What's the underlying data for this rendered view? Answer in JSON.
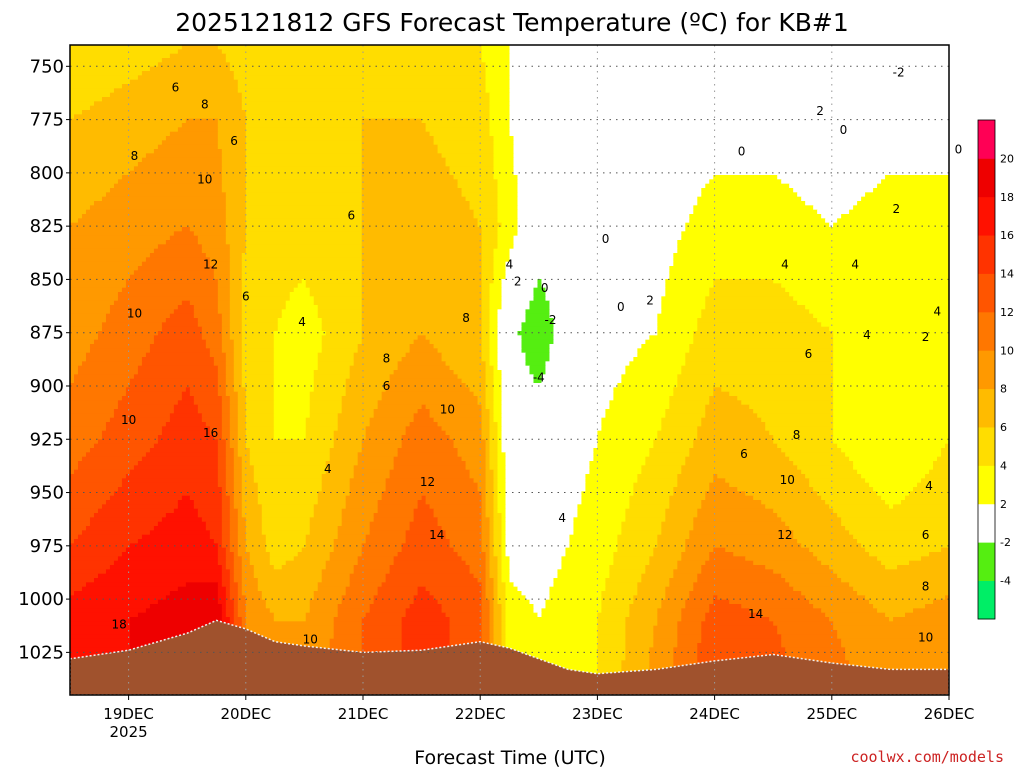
{
  "chart_data": {
    "type": "heatmap",
    "title": "2025121812 GFS Forecast Temperature (ºC) for KB#1",
    "xlabel": "Forecast Time (UTC)",
    "ylabel": "",
    "y_reversed": true,
    "xlim": [
      0,
      7.5
    ],
    "ylim": [
      740,
      1045
    ],
    "x_ticks": [
      {
        "x": 0.5,
        "label": "19DEC",
        "sub": "2025"
      },
      {
        "x": 1.5,
        "label": "20DEC",
        "sub": ""
      },
      {
        "x": 2.5,
        "label": "21DEC",
        "sub": ""
      },
      {
        "x": 3.5,
        "label": "22DEC",
        "sub": ""
      },
      {
        "x": 4.5,
        "label": "23DEC",
        "sub": ""
      },
      {
        "x": 5.5,
        "label": "24DEC",
        "sub": ""
      },
      {
        "x": 6.5,
        "label": "25DEC",
        "sub": ""
      },
      {
        "x": 7.5,
        "label": "26DEC",
        "sub": ""
      }
    ],
    "y_ticks": [
      750,
      775,
      800,
      825,
      850,
      875,
      900,
      925,
      950,
      975,
      1000,
      1025
    ],
    "x_knots": [
      0,
      0.5,
      1,
      1.25,
      1.5,
      1.75,
      2,
      2.5,
      3,
      3.5,
      3.75,
      4,
      4.25,
      4.5,
      5,
      5.5,
      6,
      6.5,
      7,
      7.5
    ],
    "y_knots": [
      740,
      775,
      825,
      875,
      925,
      975,
      1010,
      1045
    ],
    "temperature_grid": [
      [
        4,
        5,
        6,
        6,
        5,
        4,
        4,
        5,
        5,
        4,
        2,
        0,
        -2,
        -1,
        0,
        1,
        0,
        -2,
        -1,
        -1
      ],
      [
        6,
        7,
        8,
        8,
        6,
        5,
        5,
        6,
        6,
        5,
        2,
        0,
        0,
        0,
        0,
        1,
        1,
        0,
        1,
        1
      ],
      [
        8,
        9,
        10,
        9,
        6,
        5,
        5,
        6,
        7,
        6,
        3,
        0,
        0,
        0,
        1,
        3,
        3,
        2,
        3,
        3
      ],
      [
        9,
        11,
        13,
        11,
        5,
        4,
        3,
        6,
        8,
        6,
        -1,
        -4,
        0,
        1,
        2,
        5,
        5,
        4,
        3,
        4
      ],
      [
        11,
        13,
        15,
        14,
        6,
        4,
        4,
        8,
        11,
        9,
        0,
        0,
        1,
        2,
        4,
        7,
        6,
        4,
        2,
        4
      ],
      [
        14,
        16,
        17,
        16,
        8,
        5,
        6,
        10,
        13,
        11,
        1,
        1,
        2,
        3,
        6,
        10,
        9,
        7,
        5,
        6
      ],
      [
        17,
        18,
        19,
        20,
        10,
        8,
        8,
        12,
        15,
        13,
        3,
        2,
        3,
        4,
        8,
        13,
        12,
        10,
        8,
        9
      ],
      [
        18,
        18,
        20,
        20,
        11,
        9,
        9,
        12,
        15,
        13,
        3,
        2,
        3,
        4,
        9,
        14,
        13,
        11,
        9,
        10
      ]
    ],
    "colorbar": {
      "levels": [
        -6,
        -4,
        -2,
        2,
        4,
        6,
        8,
        10,
        12,
        14,
        16,
        18,
        20,
        22
      ],
      "colors": [
        "#00ee66",
        "#55ee11",
        "#ffffff",
        "#ffff00",
        "#ffdd00",
        "#ffbb00",
        "#ff9900",
        "#ff7700",
        "#ff5500",
        "#ff3300",
        "#ff1100",
        "#ee0000",
        "#ff0055"
      ],
      "labels": [
        -4,
        -2,
        2,
        4,
        6,
        8,
        10,
        12,
        14,
        16,
        18,
        20
      ]
    },
    "terrain": {
      "color": "#a0522d",
      "x": [
        0,
        0.5,
        1,
        1.25,
        1.5,
        1.75,
        2,
        2.5,
        3,
        3.5,
        3.75,
        4,
        4.25,
        4.5,
        5,
        5.5,
        6,
        6.5,
        7,
        7.5
      ],
      "pressure": [
        1028,
        1024,
        1016,
        1010,
        1014,
        1020,
        1022,
        1025,
        1024,
        1020,
        1023,
        1028,
        1033,
        1035,
        1033,
        1029,
        1026,
        1030,
        1033,
        1033
      ]
    },
    "contour_labels": [
      {
        "x": 0.9,
        "y": 760,
        "text": "6"
      },
      {
        "x": 1.15,
        "y": 768,
        "text": "8"
      },
      {
        "x": 0.55,
        "y": 792,
        "text": "8"
      },
      {
        "x": 1.4,
        "y": 785,
        "text": "6"
      },
      {
        "x": 1.15,
        "y": 803,
        "text": "10"
      },
      {
        "x": 2.4,
        "y": 820,
        "text": "6"
      },
      {
        "x": 1.2,
        "y": 843,
        "text": "12"
      },
      {
        "x": 0.55,
        "y": 866,
        "text": "10"
      },
      {
        "x": 1.5,
        "y": 858,
        "text": "6"
      },
      {
        "x": 1.98,
        "y": 870,
        "text": "4"
      },
      {
        "x": 2.7,
        "y": 887,
        "text": "8"
      },
      {
        "x": 2.7,
        "y": 900,
        "text": "6"
      },
      {
        "x": 3.38,
        "y": 868,
        "text": "8"
      },
      {
        "x": 3.22,
        "y": 911,
        "text": "10"
      },
      {
        "x": 0.5,
        "y": 916,
        "text": "10"
      },
      {
        "x": 1.2,
        "y": 922,
        "text": "16"
      },
      {
        "x": 2.2,
        "y": 939,
        "text": "4"
      },
      {
        "x": 3.05,
        "y": 945,
        "text": "12"
      },
      {
        "x": 3.13,
        "y": 970,
        "text": "14"
      },
      {
        "x": 2.05,
        "y": 1019,
        "text": "10"
      },
      {
        "x": 0.42,
        "y": 1012,
        "text": "18"
      },
      {
        "x": 3.75,
        "y": 843,
        "text": "4"
      },
      {
        "x": 3.82,
        "y": 851,
        "text": "2"
      },
      {
        "x": 4.05,
        "y": 854,
        "text": "0"
      },
      {
        "x": 4.1,
        "y": 869,
        "text": "-2"
      },
      {
        "x": 4.0,
        "y": 896,
        "text": "-4"
      },
      {
        "x": 4.57,
        "y": 831,
        "text": "0"
      },
      {
        "x": 4.7,
        "y": 863,
        "text": "0"
      },
      {
        "x": 4.95,
        "y": 860,
        "text": "2"
      },
      {
        "x": 4.2,
        "y": 962,
        "text": "4"
      },
      {
        "x": 5.73,
        "y": 790,
        "text": "0"
      },
      {
        "x": 6.4,
        "y": 771,
        "text": "2"
      },
      {
        "x": 6.6,
        "y": 780,
        "text": "0"
      },
      {
        "x": 7.07,
        "y": 753,
        "text": "-2"
      },
      {
        "x": 7.58,
        "y": 789,
        "text": "0"
      },
      {
        "x": 7.05,
        "y": 817,
        "text": "2"
      },
      {
        "x": 6.1,
        "y": 843,
        "text": "4"
      },
      {
        "x": 6.7,
        "y": 843,
        "text": "4"
      },
      {
        "x": 7.4,
        "y": 865,
        "text": "4"
      },
      {
        "x": 6.8,
        "y": 876,
        "text": "4"
      },
      {
        "x": 7.3,
        "y": 877,
        "text": "2"
      },
      {
        "x": 6.3,
        "y": 885,
        "text": "6"
      },
      {
        "x": 6.2,
        "y": 923,
        "text": "8"
      },
      {
        "x": 5.75,
        "y": 932,
        "text": "6"
      },
      {
        "x": 6.12,
        "y": 944,
        "text": "10"
      },
      {
        "x": 7.33,
        "y": 947,
        "text": "4"
      },
      {
        "x": 6.1,
        "y": 970,
        "text": "12"
      },
      {
        "x": 7.3,
        "y": 970,
        "text": "6"
      },
      {
        "x": 7.3,
        "y": 994,
        "text": "8"
      },
      {
        "x": 5.85,
        "y": 1007,
        "text": "14"
      },
      {
        "x": 7.3,
        "y": 1018,
        "text": "10"
      }
    ]
  },
  "credit": "coolwx.com/models"
}
